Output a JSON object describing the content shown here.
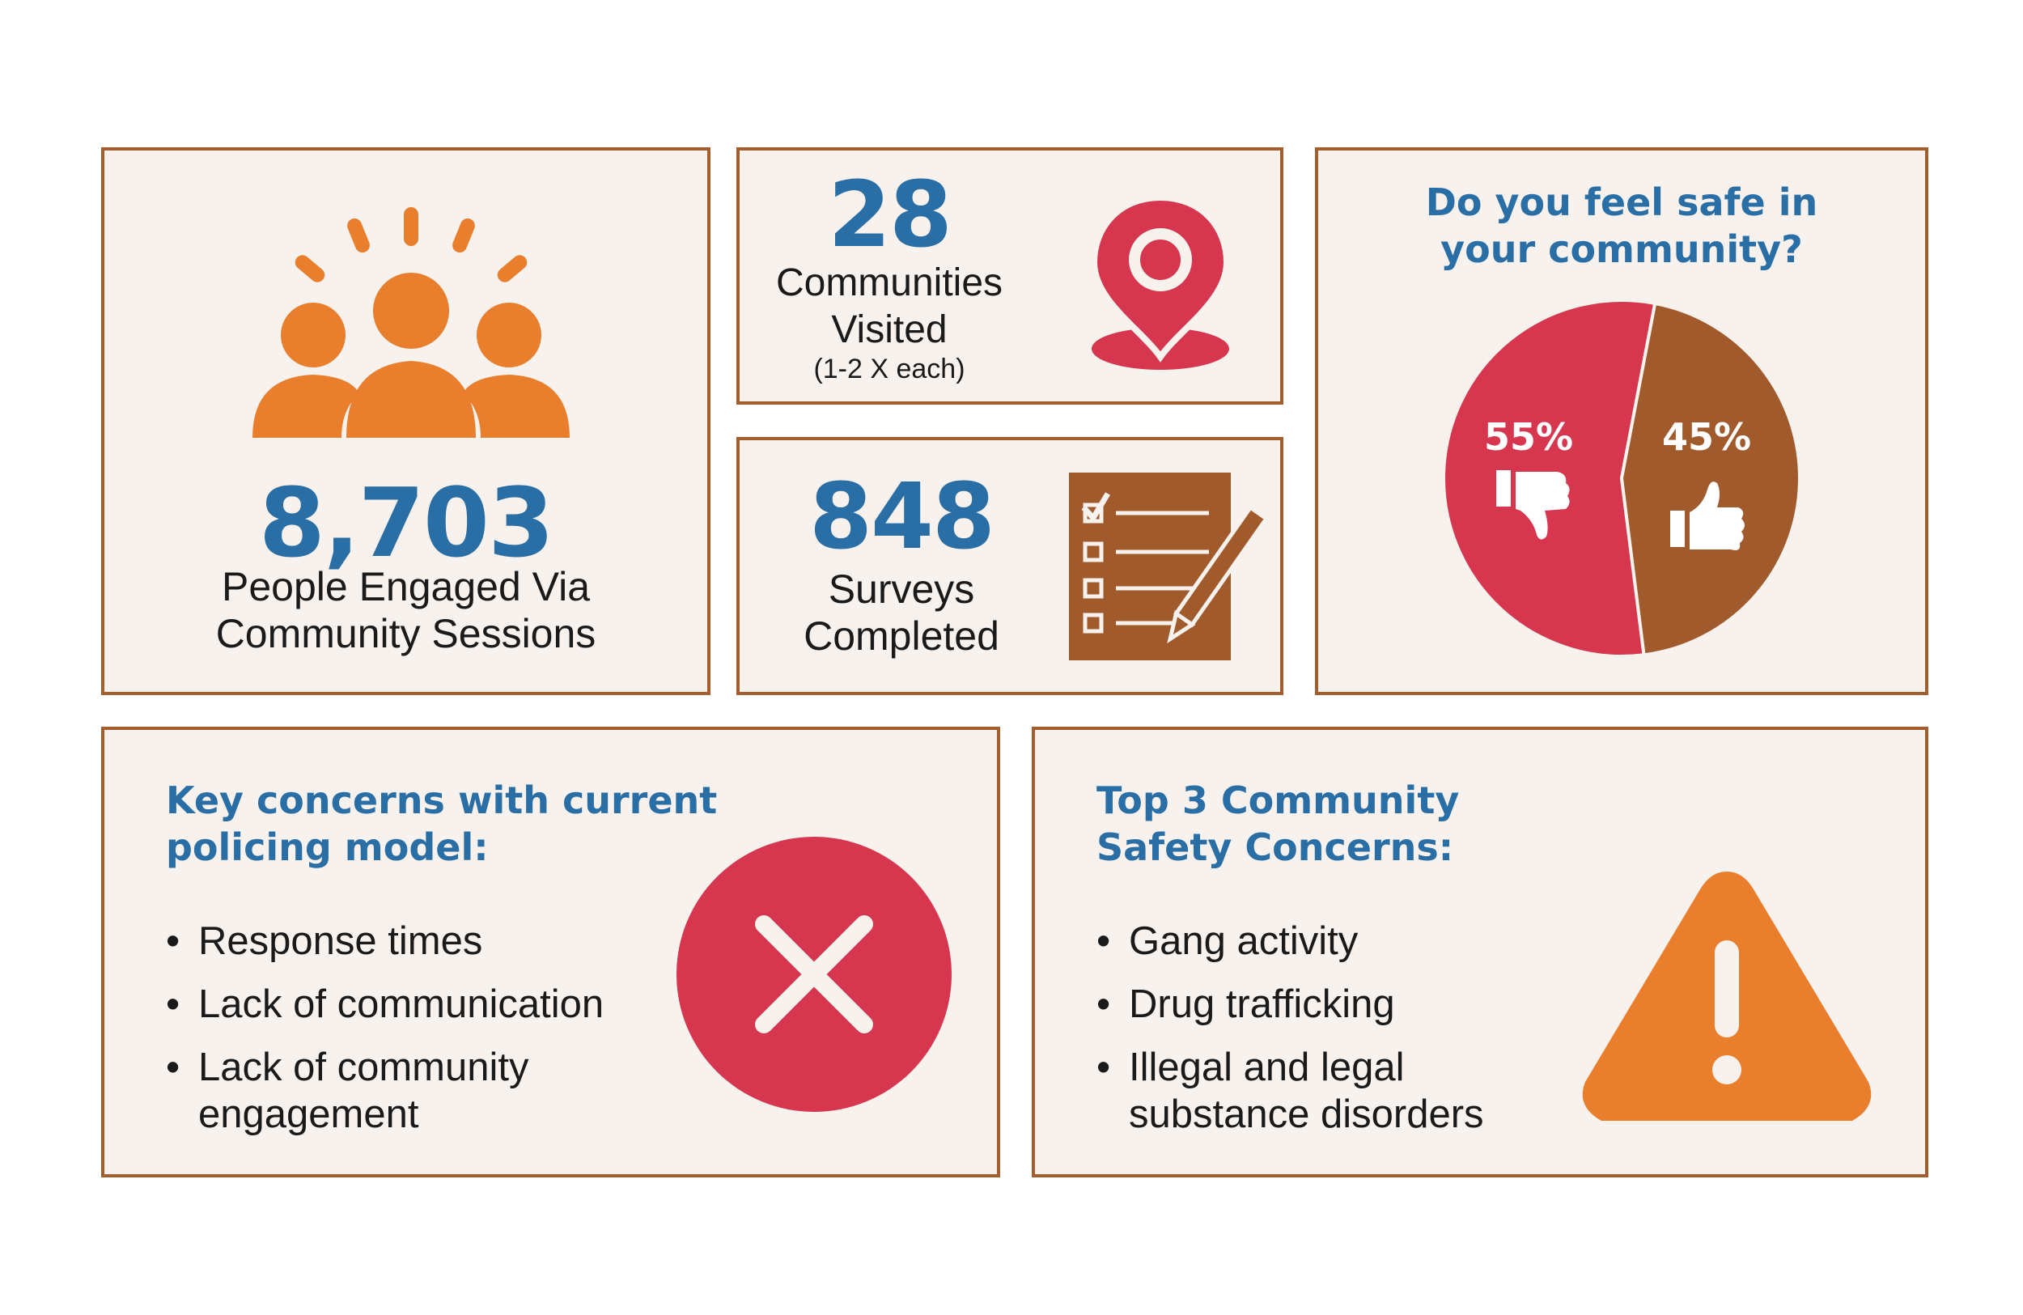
{
  "people": {
    "number": "8,703",
    "label_line1": "People Engaged Via",
    "label_line2": "Community Sessions",
    "icon": "people-group-icon"
  },
  "communities": {
    "number": "28",
    "label_line1": "Communities",
    "label_line2": "Visited",
    "note": "(1-2 X each)",
    "icon": "map-pin-icon"
  },
  "surveys": {
    "number": "848",
    "label_line1": "Surveys",
    "label_line2": "Completed",
    "icon": "checklist-icon"
  },
  "safety_poll": {
    "question_line1": "Do you feel safe in",
    "question_line2": "your community?",
    "no_label": "55%",
    "yes_label": "45%"
  },
  "chart_data": {
    "type": "pie",
    "title": "Do you feel safe in your community?",
    "slices": [
      {
        "label": "55%",
        "value": 55,
        "icon": "thumbs-down-icon",
        "color": "#d6364e"
      },
      {
        "label": "45%",
        "value": 45,
        "icon": "thumbs-up-icon",
        "color": "#a15a2c"
      }
    ]
  },
  "policing": {
    "heading_line1": "Key concerns with current",
    "heading_line2": "policing model:",
    "items": [
      "Response times",
      "Lack of communication",
      "Lack of community engagement"
    ],
    "icon": "x-circle-icon"
  },
  "safety_concerns": {
    "heading_line1": "Top 3 Community",
    "heading_line2": "Safety Concerns:",
    "items": [
      "Gang activity",
      "Drug trafficking",
      "Illegal and legal substance disorders"
    ],
    "icon": "warning-triangle-icon"
  },
  "colors": {
    "blue": "#2a6ea6",
    "orange": "#e97e2d",
    "red": "#d6364e",
    "brown": "#a15a2c",
    "card_bg": "#f8f2ee",
    "border": "#a45d2c"
  }
}
